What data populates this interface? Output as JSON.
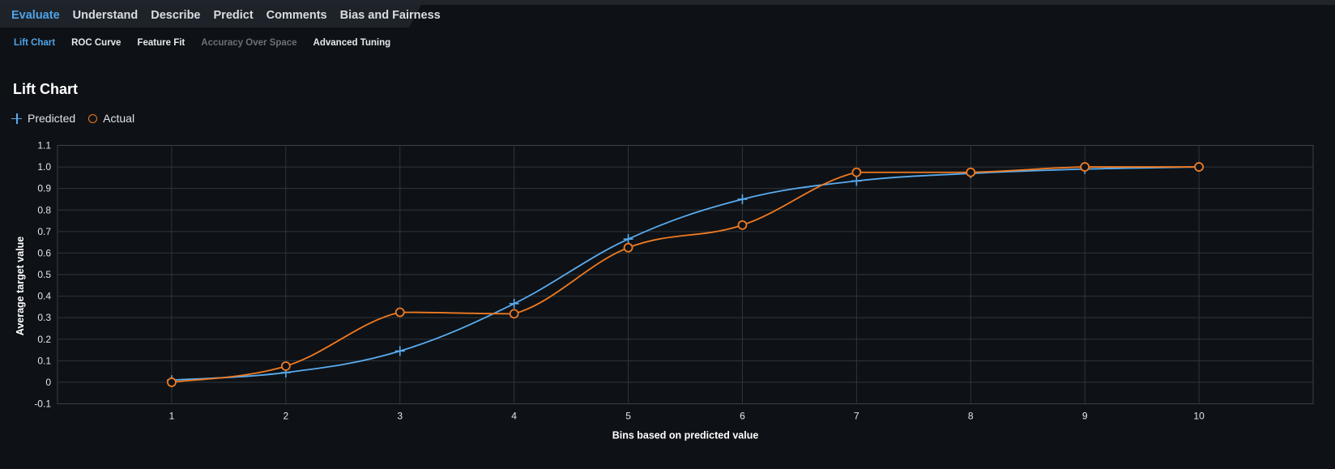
{
  "nav": {
    "main_tabs": [
      {
        "label": "Evaluate",
        "active": true
      },
      {
        "label": "Understand",
        "active": false
      },
      {
        "label": "Describe",
        "active": false
      },
      {
        "label": "Predict",
        "active": false
      },
      {
        "label": "Comments",
        "active": false
      },
      {
        "label": "Bias and Fairness",
        "active": false
      }
    ],
    "sub_tabs": [
      {
        "label": "Lift Chart",
        "state": "active"
      },
      {
        "label": "ROC Curve",
        "state": "normal"
      },
      {
        "label": "Feature Fit",
        "state": "normal"
      },
      {
        "label": "Accuracy Over Space",
        "state": "disabled"
      },
      {
        "label": "Advanced Tuning",
        "state": "normal"
      }
    ]
  },
  "page": {
    "title": "Lift Chart"
  },
  "colors": {
    "predicted": "#5aacf0",
    "actual": "#f07a22",
    "active_tab": "#4fa3e9",
    "grid": "#2f353c"
  },
  "chart_data": {
    "type": "line",
    "title": "",
    "xlabel": "Bins based on predicted value",
    "ylabel": "Average target value",
    "x": [
      1,
      2,
      3,
      4,
      5,
      6,
      7,
      8,
      9,
      10
    ],
    "xlim": [
      0,
      11
    ],
    "ylim": [
      -0.1,
      1.1
    ],
    "yticks": [
      "-0.1",
      "0",
      "0.1",
      "0.2",
      "0.3",
      "0.4",
      "0.5",
      "0.6",
      "0.7",
      "0.8",
      "0.9",
      "1.0",
      "1.1"
    ],
    "xticks": [
      "1",
      "2",
      "3",
      "4",
      "5",
      "6",
      "7",
      "8",
      "9",
      "10"
    ],
    "grid": true,
    "legend": "top-left",
    "series": [
      {
        "name": "Predicted",
        "marker": "plus",
        "color": "#5aacf0",
        "values": [
          0.01,
          0.045,
          0.145,
          0.365,
          0.665,
          0.85,
          0.935,
          0.97,
          0.99,
          1.0
        ]
      },
      {
        "name": "Actual",
        "marker": "circle",
        "color": "#f07a22",
        "values": [
          0.0,
          0.075,
          0.325,
          0.318,
          0.625,
          0.73,
          0.975,
          0.975,
          1.0,
          1.0
        ]
      }
    ]
  }
}
